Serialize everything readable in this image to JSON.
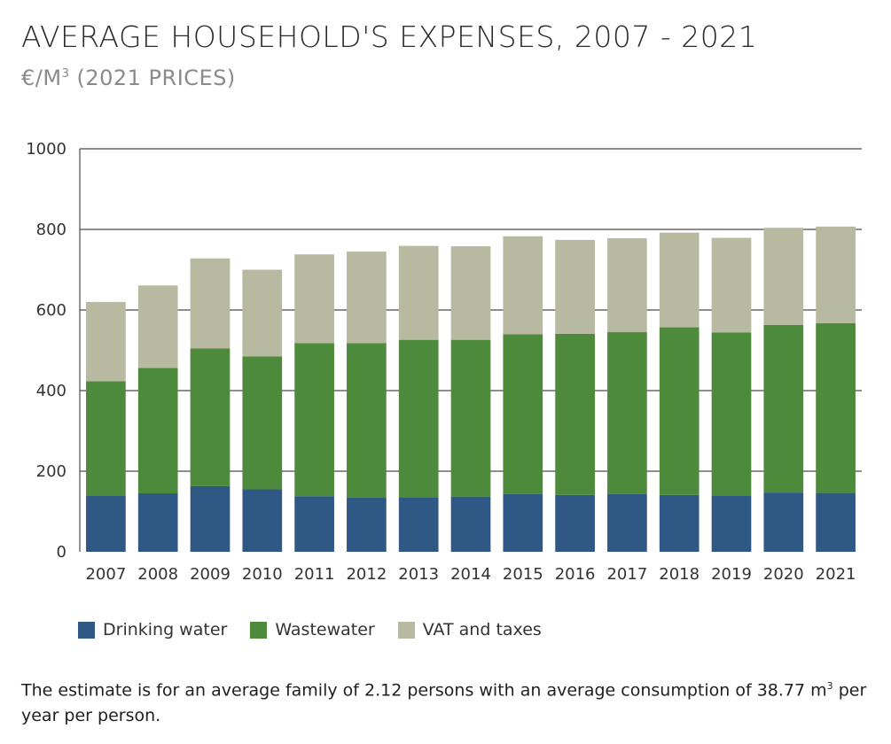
{
  "header": {
    "title": "AVERAGE HOUSEHOLD'S EXPENSES, 2007 - 2021",
    "subtitle_prefix": "€/M",
    "subtitle_sup": "3",
    "subtitle_suffix": " (2021 PRICES)"
  },
  "chart_data": {
    "type": "bar",
    "stacked": true,
    "categories": [
      "2007",
      "2008",
      "2009",
      "2010",
      "2011",
      "2012",
      "2013",
      "2014",
      "2015",
      "2016",
      "2017",
      "2018",
      "2019",
      "2020",
      "2021"
    ],
    "series": [
      {
        "name": "Drinking water",
        "color": "#2f5884",
        "values": [
          140,
          145,
          163,
          155,
          138,
          134,
          135,
          137,
          143,
          141,
          143,
          141,
          140,
          147,
          146
        ]
      },
      {
        "name": "Wastewater",
        "color": "#4d8a3c",
        "values": [
          283,
          311,
          342,
          330,
          380,
          384,
          391,
          389,
          397,
          400,
          402,
          416,
          404,
          416,
          421
        ]
      },
      {
        "name": "VAT and taxes",
        "color": "#b8b9a1",
        "values": [
          197,
          205,
          223,
          215,
          220,
          227,
          233,
          232,
          243,
          233,
          233,
          235,
          235,
          241,
          240
        ]
      }
    ],
    "ylim": [
      0,
      1000
    ],
    "yticks": [
      0,
      200,
      400,
      600,
      800,
      1000
    ],
    "grid": true,
    "legend": "bottom-left"
  },
  "legend": {
    "items": [
      {
        "label": "Drinking water",
        "color": "#2f5884"
      },
      {
        "label": "Wastewater",
        "color": "#4d8a3c"
      },
      {
        "label": "VAT and taxes",
        "color": "#b8b9a1"
      }
    ]
  },
  "note": {
    "text_before": "The estimate is for an average family of 2.12 persons with an average consumption of 38.77 m",
    "sup": "3",
    "text_after": " per year per person."
  }
}
